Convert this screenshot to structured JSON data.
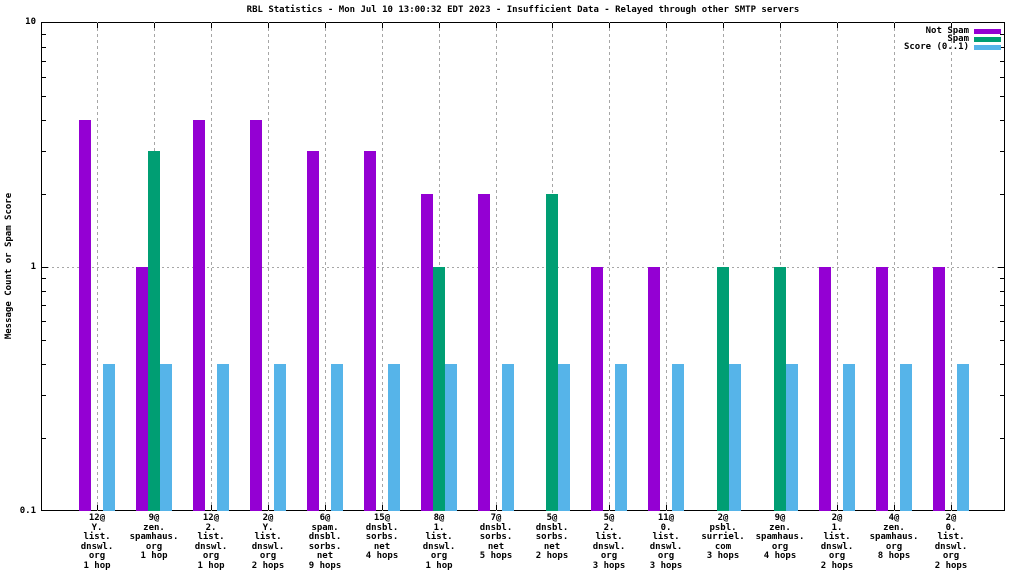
{
  "chart_data": {
    "type": "bar",
    "title": "RBL Statistics - Mon Jul 10 13:00:32 EDT 2023 - Insufficient Data - Relayed through other SMTP servers",
    "ylabel": "Message Count or Spam Score",
    "xlabel": "",
    "yscale": "log",
    "ylim": [
      0.1,
      10
    ],
    "ytick_labels": [
      "10",
      "1",
      "0.1"
    ],
    "grid": {
      "vertical": "dashed gray line at each category center",
      "horizontal": "dotted gray line at y=1"
    },
    "legend_position": "top-right inside plot",
    "categories": [
      [
        "12@",
        "Y.",
        "list.",
        "dnswl.",
        "org",
        "1 hop"
      ],
      [
        "9@",
        "zen.",
        "spamhaus.",
        "org",
        "1 hop"
      ],
      [
        "12@",
        "2.",
        "list.",
        "dnswl.",
        "org",
        "1 hop"
      ],
      [
        "2@",
        "Y.",
        "list.",
        "dnswl.",
        "org",
        "2 hops"
      ],
      [
        "6@",
        "spam.",
        "dnsbl.",
        "sorbs.",
        "net",
        "9 hops"
      ],
      [
        "15@",
        "dnsbl.",
        "sorbs.",
        "net",
        "4 hops"
      ],
      [
        "8@",
        "1.",
        "list.",
        "dnswl.",
        "org",
        "1 hop"
      ],
      [
        "7@",
        "dnsbl.",
        "sorbs.",
        "net",
        "5 hops"
      ],
      [
        "5@",
        "dnsbl.",
        "sorbs.",
        "net",
        "2 hops"
      ],
      [
        "5@",
        "2.",
        "list.",
        "dnswl.",
        "org",
        "3 hops"
      ],
      [
        "11@",
        "0.",
        "list.",
        "dnswl.",
        "org",
        "3 hops"
      ],
      [
        "2@",
        "psbl.",
        "surriel.",
        "com",
        "3 hops"
      ],
      [
        "9@",
        "zen.",
        "spamhaus.",
        "org",
        "4 hops"
      ],
      [
        "2@",
        "1.",
        "list.",
        "dnswl.",
        "org",
        "2 hops"
      ],
      [
        "4@",
        "zen.",
        "spamhaus.",
        "org",
        "8 hops"
      ],
      [
        "2@",
        "0.",
        "list.",
        "dnswl.",
        "org",
        "2 hops"
      ]
    ],
    "series": [
      {
        "name": "Not Spam",
        "color": "#9400d3",
        "values": [
          4,
          1,
          4,
          4,
          3,
          3,
          2,
          2,
          null,
          1,
          1,
          null,
          null,
          1,
          1,
          1
        ]
      },
      {
        "name": "Spam",
        "color": "#009e73",
        "values": [
          null,
          3,
          null,
          null,
          null,
          null,
          1,
          null,
          2,
          null,
          null,
          1,
          1,
          null,
          null,
          null
        ]
      },
      {
        "name": "Score (0..1)",
        "color": "#56b4e9",
        "values": [
          0.4,
          0.4,
          0.4,
          0.4,
          0.4,
          0.4,
          0.4,
          0.4,
          0.4,
          0.4,
          0.4,
          0.4,
          0.4,
          0.4,
          0.4,
          0.4
        ]
      }
    ]
  },
  "colors": {
    "background": "#ffffff",
    "axis": "#000000",
    "grid": "#a6a6a6",
    "not_spam": "#9400d3",
    "spam": "#009e73",
    "score": "#56b4e9"
  }
}
